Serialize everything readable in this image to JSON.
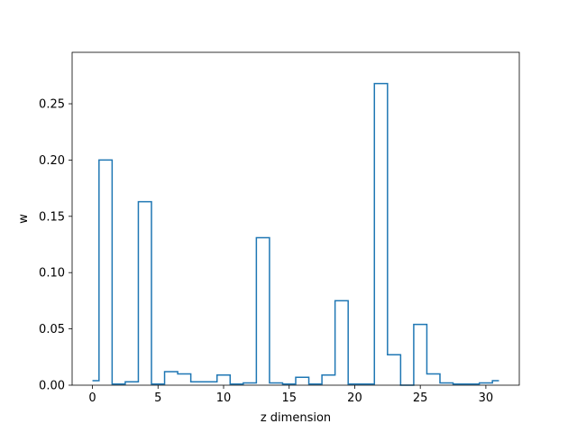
{
  "chart_data": {
    "type": "line",
    "drawstyle": "steps-mid",
    "xlabel": "z dimension",
    "ylabel": "w",
    "xlim": [
      -1.55,
      32.55
    ],
    "ylim": [
      0,
      0.2957
    ],
    "xticks": [
      0,
      5,
      10,
      15,
      20,
      25,
      30
    ],
    "yticks": [
      0.0,
      0.05,
      0.1,
      0.15,
      0.2,
      0.25
    ],
    "xtick_labels": [
      "0",
      "5",
      "10",
      "15",
      "20",
      "25",
      "30"
    ],
    "ytick_labels": [
      "0.00",
      "0.05",
      "0.10",
      "0.15",
      "0.20",
      "0.25"
    ],
    "grid": false,
    "color": "#1f77b4",
    "series": [
      {
        "x": [
          0,
          1,
          2,
          3,
          4,
          5,
          6,
          7,
          8,
          9,
          10,
          11,
          12,
          13,
          14,
          15,
          16,
          17,
          18,
          19,
          20,
          21,
          22,
          23,
          24,
          25,
          26,
          27,
          28,
          29,
          30,
          31
        ],
        "values": [
          0.004,
          0.2,
          0.001,
          0.003,
          0.163,
          0.001,
          0.012,
          0.01,
          0.003,
          0.003,
          0.009,
          0.001,
          0.002,
          0.131,
          0.002,
          0.001,
          0.007,
          0.001,
          0.009,
          0.075,
          0.001,
          0.001,
          0.268,
          0.027,
          0.0,
          0.054,
          0.01,
          0.002,
          0.001,
          0.001,
          0.002,
          0.004
        ]
      }
    ]
  }
}
